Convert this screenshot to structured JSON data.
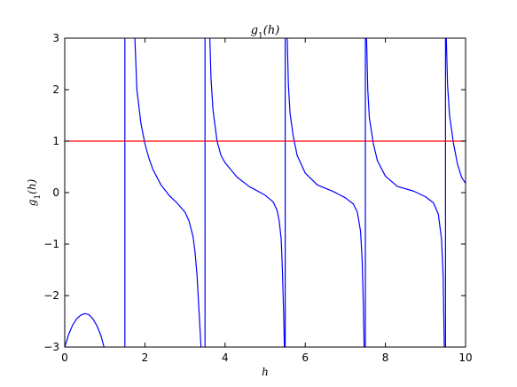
{
  "chart_data": {
    "type": "line",
    "title": "g_1(h)",
    "xlabel": "h",
    "ylabel": "g_1(h)",
    "xlim": [
      0,
      10
    ],
    "ylim": [
      -3,
      3
    ],
    "grid": false,
    "x_ticks": [
      0,
      2,
      4,
      6,
      8,
      10
    ],
    "x_tick_labels": [
      "0",
      "2",
      "4",
      "6",
      "8",
      "10"
    ],
    "y_ticks": [
      -3,
      -2,
      -1,
      0,
      1,
      2,
      3
    ],
    "y_tick_labels": [
      "−3",
      "−2",
      "−1",
      "0",
      "1",
      "2",
      "3"
    ],
    "series": [
      {
        "color": "#0000ff",
        "segments": [
          [
            [
              0,
              -3.0
            ],
            [
              0.1,
              -2.75
            ],
            [
              0.2,
              -2.57
            ],
            [
              0.3,
              -2.45
            ],
            [
              0.4,
              -2.38
            ],
            [
              0.5,
              -2.35
            ],
            [
              0.6,
              -2.37
            ],
            [
              0.7,
              -2.45
            ],
            [
              0.8,
              -2.58
            ],
            [
              0.9,
              -2.77
            ],
            [
              0.98,
              -3.0
            ]
          ],
          [
            [
              1.5,
              -3.0
            ],
            [
              1.5,
              3.0
            ]
          ],
          [
            [
              1.75,
              3.0
            ],
            [
              1.8,
              2.0
            ],
            [
              1.9,
              1.35
            ],
            [
              2.0,
              0.95
            ],
            [
              2.1,
              0.67
            ],
            [
              2.2,
              0.45
            ],
            [
              2.4,
              0.15
            ],
            [
              2.6,
              -0.05
            ],
            [
              2.8,
              -0.2
            ],
            [
              3.0,
              -0.38
            ],
            [
              3.1,
              -0.55
            ],
            [
              3.2,
              -0.85
            ],
            [
              3.25,
              -1.15
            ],
            [
              3.3,
              -1.6
            ],
            [
              3.35,
              -2.3
            ],
            [
              3.4,
              -3.0
            ]
          ],
          [
            [
              3.5,
              -3.0
            ],
            [
              3.5,
              3.0
            ]
          ],
          [
            [
              3.62,
              3.0
            ],
            [
              3.65,
              2.2
            ],
            [
              3.7,
              1.6
            ],
            [
              3.8,
              1.0
            ],
            [
              3.9,
              0.72
            ],
            [
              4.0,
              0.58
            ],
            [
              4.3,
              0.3
            ],
            [
              4.6,
              0.12
            ],
            [
              5.0,
              -0.05
            ],
            [
              5.2,
              -0.18
            ],
            [
              5.3,
              -0.35
            ],
            [
              5.35,
              -0.55
            ],
            [
              5.4,
              -0.9
            ],
            [
              5.43,
              -1.5
            ],
            [
              5.46,
              -2.3
            ],
            [
              5.48,
              -3.0
            ]
          ],
          [
            [
              5.5,
              -3.0
            ],
            [
              5.5,
              3.0
            ]
          ],
          [
            [
              5.55,
              3.0
            ],
            [
              5.58,
              2.1
            ],
            [
              5.62,
              1.55
            ],
            [
              5.7,
              1.1
            ],
            [
              5.8,
              0.72
            ],
            [
              6.0,
              0.38
            ],
            [
              6.3,
              0.15
            ],
            [
              6.7,
              0.02
            ],
            [
              7.0,
              -0.1
            ],
            [
              7.2,
              -0.22
            ],
            [
              7.3,
              -0.38
            ],
            [
              7.38,
              -0.75
            ],
            [
              7.42,
              -1.3
            ],
            [
              7.45,
              -2.2
            ],
            [
              7.47,
              -3.0
            ]
          ],
          [
            [
              7.5,
              -3.0
            ],
            [
              7.5,
              3.0
            ]
          ],
          [
            [
              7.53,
              3.0
            ],
            [
              7.56,
              2.0
            ],
            [
              7.6,
              1.45
            ],
            [
              7.7,
              0.95
            ],
            [
              7.8,
              0.62
            ],
            [
              8.0,
              0.32
            ],
            [
              8.3,
              0.12
            ],
            [
              8.7,
              0.03
            ],
            [
              9.0,
              -0.08
            ],
            [
              9.2,
              -0.2
            ],
            [
              9.32,
              -0.42
            ],
            [
              9.4,
              -0.9
            ],
            [
              9.44,
              -1.6
            ],
            [
              9.47,
              -3.0
            ]
          ],
          [
            [
              9.5,
              -3.0
            ],
            [
              9.5,
              3.0
            ]
          ],
          [
            [
              9.52,
              3.0
            ],
            [
              9.55,
              2.1
            ],
            [
              9.6,
              1.5
            ],
            [
              9.7,
              0.95
            ],
            [
              9.8,
              0.55
            ],
            [
              9.9,
              0.3
            ],
            [
              10.0,
              0.18
            ]
          ]
        ]
      },
      {
        "color": "#ff0000",
        "segments": [
          [
            [
              0,
              1
            ],
            [
              10,
              1
            ]
          ]
        ]
      }
    ]
  }
}
